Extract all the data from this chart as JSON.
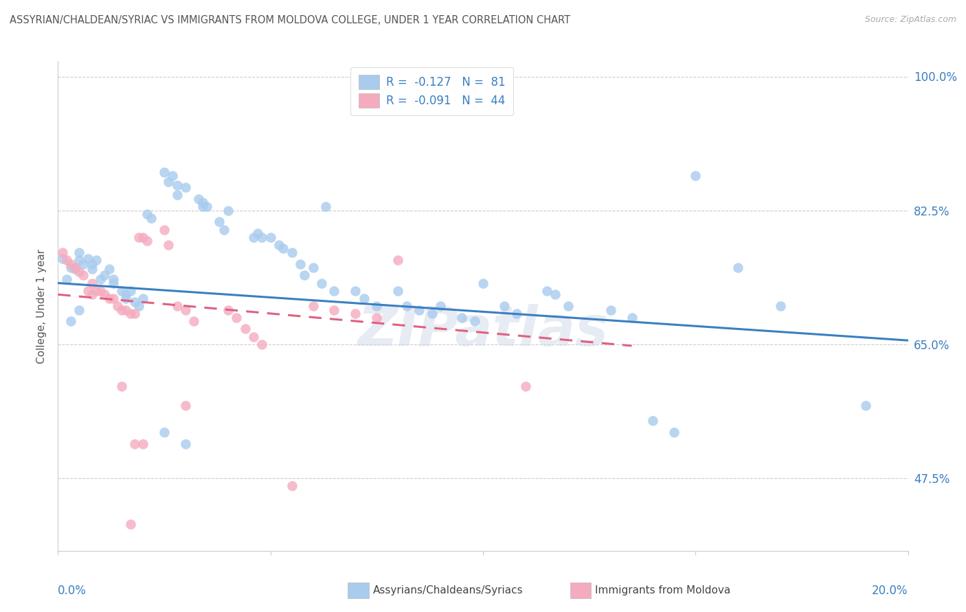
{
  "title": "ASSYRIAN/CHALDEAN/SYRIAC VS IMMIGRANTS FROM MOLDOVA COLLEGE, UNDER 1 YEAR CORRELATION CHART",
  "source": "Source: ZipAtlas.com",
  "ylabel": "College, Under 1 year",
  "yticks": [
    "47.5%",
    "65.0%",
    "82.5%",
    "100.0%"
  ],
  "ytick_values": [
    0.475,
    0.65,
    0.825,
    1.0
  ],
  "xlim": [
    0.0,
    0.2
  ],
  "ylim": [
    0.38,
    1.02
  ],
  "legend1_label": "R =  -0.127   N =  81",
  "legend2_label": "R =  -0.091   N =  44",
  "series1_color": "#A8CBEE",
  "series2_color": "#F4ABBE",
  "trend1_color": "#3A7FC1",
  "trend2_color": "#E06080",
  "blue_scatter": [
    [
      0.001,
      0.762
    ],
    [
      0.002,
      0.735
    ],
    [
      0.003,
      0.75
    ],
    [
      0.004,
      0.748
    ],
    [
      0.005,
      0.76
    ],
    [
      0.005,
      0.77
    ],
    [
      0.006,
      0.755
    ],
    [
      0.007,
      0.762
    ],
    [
      0.008,
      0.755
    ],
    [
      0.008,
      0.748
    ],
    [
      0.009,
      0.76
    ],
    [
      0.01,
      0.735
    ],
    [
      0.011,
      0.74
    ],
    [
      0.012,
      0.748
    ],
    [
      0.013,
      0.735
    ],
    [
      0.013,
      0.73
    ],
    [
      0.015,
      0.72
    ],
    [
      0.016,
      0.715
    ],
    [
      0.016,
      0.71
    ],
    [
      0.017,
      0.72
    ],
    [
      0.018,
      0.705
    ],
    [
      0.019,
      0.7
    ],
    [
      0.02,
      0.71
    ],
    [
      0.025,
      0.875
    ],
    [
      0.026,
      0.862
    ],
    [
      0.027,
      0.87
    ],
    [
      0.028,
      0.858
    ],
    [
      0.028,
      0.845
    ],
    [
      0.03,
      0.855
    ],
    [
      0.033,
      0.84
    ],
    [
      0.034,
      0.835
    ],
    [
      0.034,
      0.83
    ],
    [
      0.035,
      0.83
    ],
    [
      0.04,
      0.825
    ],
    [
      0.046,
      0.79
    ],
    [
      0.047,
      0.795
    ],
    [
      0.048,
      0.79
    ],
    [
      0.05,
      0.79
    ],
    [
      0.052,
      0.78
    ],
    [
      0.053,
      0.775
    ],
    [
      0.055,
      0.77
    ],
    [
      0.057,
      0.755
    ],
    [
      0.058,
      0.74
    ],
    [
      0.06,
      0.75
    ],
    [
      0.062,
      0.73
    ],
    [
      0.065,
      0.72
    ],
    [
      0.07,
      0.72
    ],
    [
      0.072,
      0.71
    ],
    [
      0.075,
      0.7
    ],
    [
      0.08,
      0.72
    ],
    [
      0.082,
      0.7
    ],
    [
      0.085,
      0.695
    ],
    [
      0.088,
      0.69
    ],
    [
      0.09,
      0.7
    ],
    [
      0.095,
      0.685
    ],
    [
      0.098,
      0.68
    ],
    [
      0.1,
      0.73
    ],
    [
      0.105,
      0.7
    ],
    [
      0.108,
      0.69
    ],
    [
      0.115,
      0.72
    ],
    [
      0.117,
      0.715
    ],
    [
      0.12,
      0.7
    ],
    [
      0.13,
      0.695
    ],
    [
      0.135,
      0.685
    ],
    [
      0.14,
      0.55
    ],
    [
      0.145,
      0.535
    ],
    [
      0.025,
      0.535
    ],
    [
      0.03,
      0.52
    ],
    [
      0.021,
      0.82
    ],
    [
      0.022,
      0.815
    ],
    [
      0.038,
      0.81
    ],
    [
      0.039,
      0.8
    ],
    [
      0.063,
      0.83
    ],
    [
      0.15,
      0.87
    ],
    [
      0.16,
      0.75
    ],
    [
      0.17,
      0.7
    ],
    [
      0.19,
      0.57
    ],
    [
      0.005,
      0.695
    ],
    [
      0.003,
      0.68
    ]
  ],
  "pink_scatter": [
    [
      0.001,
      0.77
    ],
    [
      0.002,
      0.76
    ],
    [
      0.003,
      0.755
    ],
    [
      0.004,
      0.75
    ],
    [
      0.005,
      0.745
    ],
    [
      0.006,
      0.74
    ],
    [
      0.007,
      0.72
    ],
    [
      0.008,
      0.73
    ],
    [
      0.008,
      0.715
    ],
    [
      0.009,
      0.72
    ],
    [
      0.01,
      0.72
    ],
    [
      0.011,
      0.715
    ],
    [
      0.012,
      0.71
    ],
    [
      0.013,
      0.71
    ],
    [
      0.014,
      0.7
    ],
    [
      0.015,
      0.695
    ],
    [
      0.016,
      0.695
    ],
    [
      0.017,
      0.69
    ],
    [
      0.018,
      0.69
    ],
    [
      0.019,
      0.79
    ],
    [
      0.02,
      0.79
    ],
    [
      0.021,
      0.785
    ],
    [
      0.025,
      0.8
    ],
    [
      0.026,
      0.78
    ],
    [
      0.028,
      0.7
    ],
    [
      0.03,
      0.695
    ],
    [
      0.032,
      0.68
    ],
    [
      0.04,
      0.695
    ],
    [
      0.042,
      0.685
    ],
    [
      0.044,
      0.67
    ],
    [
      0.046,
      0.66
    ],
    [
      0.048,
      0.65
    ],
    [
      0.06,
      0.7
    ],
    [
      0.065,
      0.695
    ],
    [
      0.07,
      0.69
    ],
    [
      0.075,
      0.685
    ],
    [
      0.08,
      0.76
    ],
    [
      0.11,
      0.595
    ],
    [
      0.015,
      0.595
    ],
    [
      0.018,
      0.52
    ],
    [
      0.02,
      0.52
    ],
    [
      0.03,
      0.57
    ],
    [
      0.055,
      0.465
    ],
    [
      0.017,
      0.415
    ]
  ],
  "trend1_x": [
    0.0,
    0.2
  ],
  "trend1_y": [
    0.73,
    0.655
  ],
  "trend2_x": [
    0.0,
    0.135
  ],
  "trend2_y": [
    0.715,
    0.648
  ],
  "watermark": "ZIPatlas",
  "background_color": "#ffffff",
  "grid_color": "#cccccc",
  "spine_color": "#cccccc",
  "tick_label_color": "#3A7FC1",
  "title_color": "#555555",
  "ylabel_color": "#555555",
  "source_color": "#aaaaaa"
}
